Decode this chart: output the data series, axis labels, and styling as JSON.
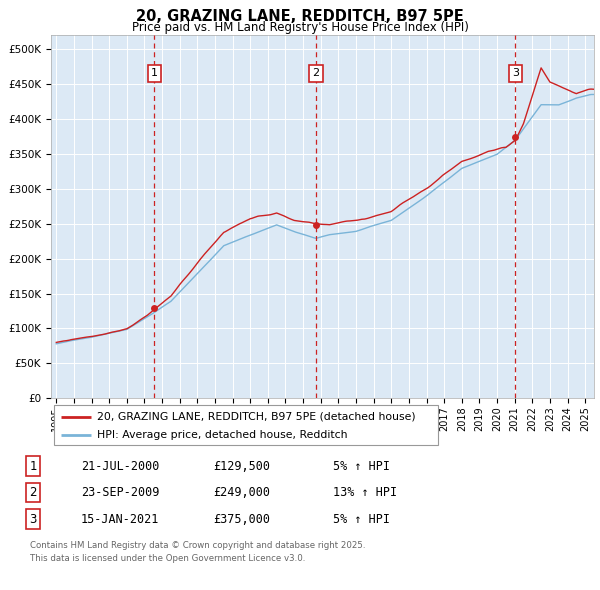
{
  "title": "20, GRAZING LANE, REDDITCH, B97 5PE",
  "subtitle": "Price paid vs. HM Land Registry's House Price Index (HPI)",
  "plot_bg_color": "#dce9f5",
  "ylim": [
    0,
    520000
  ],
  "yticks": [
    0,
    50000,
    100000,
    150000,
    200000,
    250000,
    300000,
    350000,
    400000,
    450000,
    500000
  ],
  "xlim_start": 1994.7,
  "xlim_end": 2025.5,
  "xticks": [
    1995,
    1996,
    1997,
    1998,
    1999,
    2000,
    2001,
    2002,
    2003,
    2004,
    2005,
    2006,
    2007,
    2008,
    2009,
    2010,
    2011,
    2012,
    2013,
    2014,
    2015,
    2016,
    2017,
    2018,
    2019,
    2020,
    2021,
    2022,
    2023,
    2024,
    2025
  ],
  "hpi_color": "#7ab4d8",
  "price_color": "#cc2222",
  "dashed_line_color": "#cc2222",
  "purchases": [
    {
      "num": 1,
      "date_x": 2000.55,
      "price": 129500,
      "label": "21-JUL-2000",
      "pct": "5%",
      "dir": "↑"
    },
    {
      "num": 2,
      "date_x": 2009.73,
      "price": 249000,
      "label": "23-SEP-2009",
      "pct": "13%",
      "dir": "↑"
    },
    {
      "num": 3,
      "date_x": 2021.04,
      "price": 375000,
      "label": "15-JAN-2021",
      "pct": "5%",
      "dir": "↑"
    }
  ],
  "legend_line1": "20, GRAZING LANE, REDDITCH, B97 5PE (detached house)",
  "legend_line2": "HPI: Average price, detached house, Redditch",
  "footer1": "Contains HM Land Registry data © Crown copyright and database right 2025.",
  "footer2": "This data is licensed under the Open Government Licence v3.0."
}
